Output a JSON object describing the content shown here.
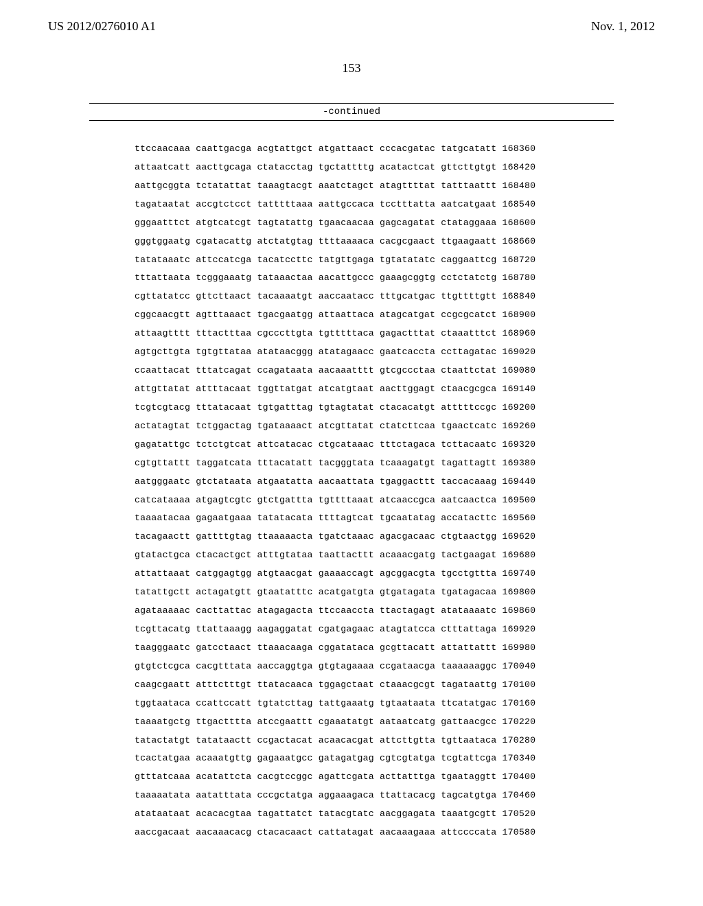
{
  "header": {
    "publication_number": "US 2012/0276010 A1",
    "publication_date": "Nov. 1, 2012"
  },
  "page_number": "153",
  "continued_label": "-continued",
  "sequence_rows": [
    {
      "groups": [
        "ttccaacaaa",
        "caattgacga",
        "acgtattgct",
        "atgattaact",
        "cccacgatac",
        "tatgcatatt"
      ],
      "pos": "168360"
    },
    {
      "groups": [
        "attaatcatt",
        "aacttgcaga",
        "ctatacctag",
        "tgctattttg",
        "acatactcat",
        "gttcttgtgt"
      ],
      "pos": "168420"
    },
    {
      "groups": [
        "aattgcggta",
        "tctatattat",
        "taaagtacgt",
        "aaatctagct",
        "atagttttat",
        "tatttaattt"
      ],
      "pos": "168480"
    },
    {
      "groups": [
        "tagataatat",
        "accgtctcct",
        "tatttttaaa",
        "aattgccaca",
        "tcctttatta",
        "aatcatgaat"
      ],
      "pos": "168540"
    },
    {
      "groups": [
        "gggaatttct",
        "atgtcatcgt",
        "tagtatattg",
        "tgaacaacaa",
        "gagcagatat",
        "ctataggaaa"
      ],
      "pos": "168600"
    },
    {
      "groups": [
        "gggtggaatg",
        "cgatacattg",
        "atctatgtag",
        "ttttaaaaca",
        "cacgcgaact",
        "ttgaagaatt"
      ],
      "pos": "168660"
    },
    {
      "groups": [
        "tatataaatc",
        "attccatcga",
        "tacatccttc",
        "tatgttgaga",
        "tgtatatatc",
        "caggaattcg"
      ],
      "pos": "168720"
    },
    {
      "groups": [
        "tttattaata",
        "tcgggaaatg",
        "tataaactaa",
        "aacattgccc",
        "gaaagcggtg",
        "cctctatctg"
      ],
      "pos": "168780"
    },
    {
      "groups": [
        "cgttatatcc",
        "gttcttaact",
        "tacaaaatgt",
        "aaccaatacc",
        "tttgcatgac",
        "ttgttttgtt"
      ],
      "pos": "168840"
    },
    {
      "groups": [
        "cggcaacgtt",
        "agtttaaact",
        "tgacgaatgg",
        "attaattaca",
        "atagcatgat",
        "ccgcgcatct"
      ],
      "pos": "168900"
    },
    {
      "groups": [
        "attaagtttt",
        "tttactttaa",
        "cgcccttgta",
        "tgtttttaca",
        "gagactttat",
        "ctaaatttct"
      ],
      "pos": "168960"
    },
    {
      "groups": [
        "agtgcttgta",
        "tgtgttataa",
        "atataacggg",
        "atatagaacc",
        "gaatcaccta",
        "ccttagatac"
      ],
      "pos": "169020"
    },
    {
      "groups": [
        "ccaattacat",
        "tttatcagat",
        "ccagataata",
        "aacaaatttt",
        "gtcgccctaa",
        "ctaattctat"
      ],
      "pos": "169080"
    },
    {
      "groups": [
        "attgttatat",
        "attttacaat",
        "tggttatgat",
        "atcatgtaat",
        "aacttggagt",
        "ctaacgcgca"
      ],
      "pos": "169140"
    },
    {
      "groups": [
        "tcgtcgtacg",
        "tttatacaat",
        "tgtgatttag",
        "tgtagtatat",
        "ctacacatgt",
        "atttttccgc"
      ],
      "pos": "169200"
    },
    {
      "groups": [
        "actatagtat",
        "tctggactag",
        "tgataaaact",
        "atcgttatat",
        "ctatcttcaa",
        "tgaactcatc"
      ],
      "pos": "169260"
    },
    {
      "groups": [
        "gagatattgc",
        "tctctgtcat",
        "attcatacac",
        "ctgcataaac",
        "tttctagaca",
        "tcttacaatc"
      ],
      "pos": "169320"
    },
    {
      "groups": [
        "cgtgttattt",
        "taggatcata",
        "tttacatatt",
        "tacgggtata",
        "tcaaagatgt",
        "tagattagtt"
      ],
      "pos": "169380"
    },
    {
      "groups": [
        "aatgggaatc",
        "gtctataata",
        "atgaatatta",
        "aacaattata",
        "tgaggacttt",
        "taccacaaag"
      ],
      "pos": "169440"
    },
    {
      "groups": [
        "catcataaaa",
        "atgagtcgtc",
        "gtctgattta",
        "tgttttaaat",
        "atcaaccgca",
        "aatcaactca"
      ],
      "pos": "169500"
    },
    {
      "groups": [
        "taaaatacaa",
        "gagaatgaaa",
        "tatatacata",
        "ttttagtcat",
        "tgcaatatag",
        "accatacttc"
      ],
      "pos": "169560"
    },
    {
      "groups": [
        "tacagaactt",
        "gattttgtag",
        "ttaaaaacta",
        "tgatctaaac",
        "agacgacaac",
        "ctgtaactgg"
      ],
      "pos": "169620"
    },
    {
      "groups": [
        "gtatactgca",
        "ctacactgct",
        "atttgtataa",
        "taattacttt",
        "acaaacgatg",
        "tactgaagat"
      ],
      "pos": "169680"
    },
    {
      "groups": [
        "attattaaat",
        "catggagtgg",
        "atgtaacgat",
        "gaaaaccagt",
        "agcggacgta",
        "tgcctgttta"
      ],
      "pos": "169740"
    },
    {
      "groups": [
        "tatattgctt",
        "actagatgtt",
        "gtaatatttc",
        "acatgatgta",
        "gtgatagata",
        "tgatagacaa"
      ],
      "pos": "169800"
    },
    {
      "groups": [
        "agataaaaac",
        "cacttattac",
        "atagagacta",
        "ttccaaccta",
        "ttactagagt",
        "atataaaatc"
      ],
      "pos": "169860"
    },
    {
      "groups": [
        "tcgttacatg",
        "ttattaaagg",
        "aagaggatat",
        "cgatgagaac",
        "atagtatcca",
        "ctttattaga"
      ],
      "pos": "169920"
    },
    {
      "groups": [
        "taagggaatc",
        "gatcctaact",
        "ttaaacaaga",
        "cggatataca",
        "gcgttacatt",
        "attattattt"
      ],
      "pos": "169980"
    },
    {
      "groups": [
        "gtgtctcgca",
        "cacgtttata",
        "aaccaggtga",
        "gtgtagaaaa",
        "ccgataacga",
        "taaaaaaggc"
      ],
      "pos": "170040"
    },
    {
      "groups": [
        "caagcgaatt",
        "atttctttgt",
        "ttatacaaca",
        "tggagctaat",
        "ctaaacgcgt",
        "tagataattg"
      ],
      "pos": "170100"
    },
    {
      "groups": [
        "tggtaataca",
        "ccattccatt",
        "tgtatcttag",
        "tattgaaatg",
        "tgtaataata",
        "ttcatatgac"
      ],
      "pos": "170160"
    },
    {
      "groups": [
        "taaaatgctg",
        "ttgactttta",
        "atccgaattt",
        "cgaaatatgt",
        "aataatcatg",
        "gattaacgcc"
      ],
      "pos": "170220"
    },
    {
      "groups": [
        "tatactatgt",
        "tatataactt",
        "ccgactacat",
        "acaacacgat",
        "attcttgtta",
        "tgttaataca"
      ],
      "pos": "170280"
    },
    {
      "groups": [
        "tcactatgaa",
        "acaaatgttg",
        "gagaaatgcc",
        "gatagatgag",
        "cgtcgtatga",
        "tcgtattcga"
      ],
      "pos": "170340"
    },
    {
      "groups": [
        "gtttatcaaa",
        "acatattcta",
        "cacgtccggc",
        "agattcgata",
        "acttatttga",
        "tgaataggtt"
      ],
      "pos": "170400"
    },
    {
      "groups": [
        "taaaaatata",
        "aatatttata",
        "cccgctatga",
        "aggaaagaca",
        "ttattacacg",
        "tagcatgtga"
      ],
      "pos": "170460"
    },
    {
      "groups": [
        "atataataat",
        "acacacgtaa",
        "tagattatct",
        "tatacgtatc",
        "aacggagata",
        "taaatgcgtt"
      ],
      "pos": "170520"
    },
    {
      "groups": [
        "aaccgacaat",
        "aacaaacacg",
        "ctacacaact",
        "cattatagat",
        "aacaaagaaa",
        "attccccata"
      ],
      "pos": "170580"
    }
  ]
}
